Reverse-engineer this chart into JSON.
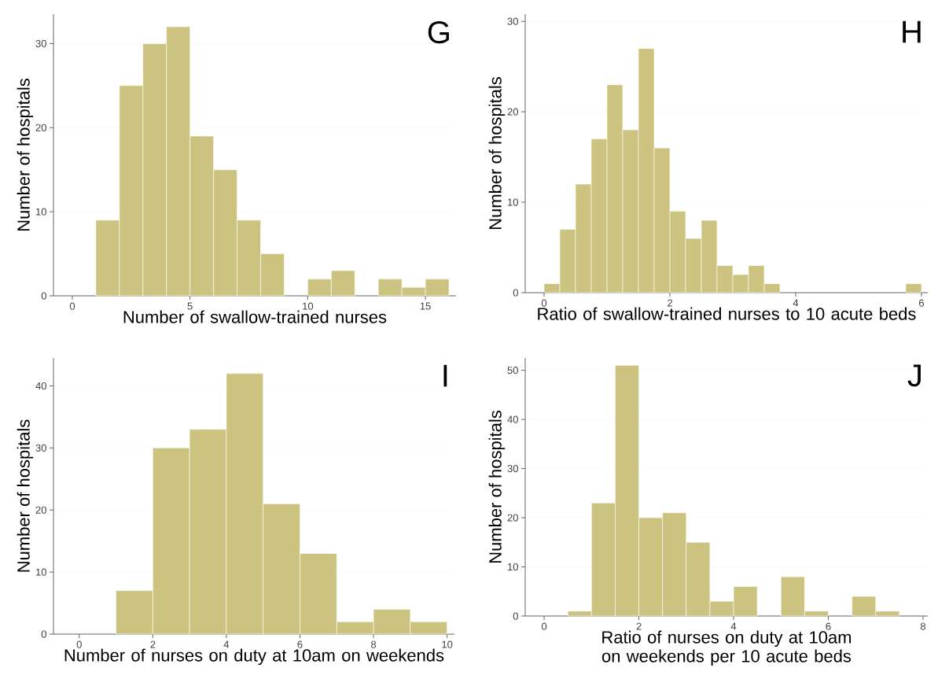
{
  "chart_data": [
    {
      "type": "histogram",
      "bins": [
        1,
        2,
        3,
        4,
        5,
        6,
        7,
        8,
        9,
        10,
        11,
        12,
        13,
        14,
        15,
        16
      ],
      "values": [
        9,
        25,
        30,
        32,
        19,
        15,
        9,
        5,
        0,
        2,
        3,
        0,
        2,
        1,
        2
      ],
      "color": "#cbc37f",
      "xlabel": "Number of swallow-trained nurses",
      "ylabel": "Number of hospitals",
      "xlim": [
        -0.8,
        16.3
      ],
      "ylim": [
        0,
        33.5
      ],
      "xticks": [
        0,
        5,
        10,
        15
      ],
      "yticks": [
        0,
        10,
        20,
        30
      ],
      "grid": "y",
      "annotations": [
        "G"
      ]
    },
    {
      "type": "histogram",
      "bins": [
        0,
        0.25,
        0.5,
        0.75,
        1,
        1.25,
        1.5,
        1.75,
        2,
        2.25,
        2.5,
        2.75,
        3,
        3.25,
        3.5,
        3.75,
        4,
        4.25,
        4.5,
        4.75,
        5,
        5.25,
        5.5,
        5.75,
        6
      ],
      "values": [
        1,
        7,
        12,
        17,
        23,
        18,
        27,
        16,
        9,
        6,
        8,
        3,
        2,
        3,
        1,
        0,
        0,
        0,
        0,
        0,
        0,
        0,
        0,
        1
      ],
      "color": "#cbc37f",
      "xlabel": "Ratio of swallow-trained nurses to 10 acute beds",
      "ylabel": "Number of hospitals",
      "xlim": [
        -0.3,
        6.1
      ],
      "ylim": [
        0,
        30.8
      ],
      "xticks": [
        0,
        2,
        4,
        6
      ],
      "yticks": [
        0,
        10,
        20,
        30
      ],
      "grid": "y",
      "annotations": [
        "H"
      ]
    },
    {
      "type": "histogram",
      "bins": [
        1,
        2,
        3,
        4,
        5,
        6,
        7,
        8,
        9,
        10
      ],
      "values": [
        7,
        30,
        33,
        42,
        21,
        13,
        2,
        4,
        2
      ],
      "color": "#cbc37f",
      "xlabel": "Number of nurses on duty at 10am on weekends",
      "ylabel": "Number of hospitals",
      "xlim": [
        -0.7,
        10.2
      ],
      "ylim": [
        0,
        44.5
      ],
      "xticks": [
        0,
        2,
        4,
        6,
        8,
        10
      ],
      "yticks": [
        0,
        10,
        20,
        30,
        40
      ],
      "grid": "y",
      "annotations": [
        "I"
      ]
    },
    {
      "type": "histogram",
      "bins": [
        0.5,
        1,
        1.5,
        2,
        2.5,
        3,
        3.5,
        4,
        4.5,
        5,
        5.5,
        6,
        6.5,
        7,
        7.5
      ],
      "values": [
        1,
        23,
        51,
        20,
        21,
        15,
        3,
        6,
        0,
        8,
        1,
        0,
        4,
        1
      ],
      "color": "#cbc37f",
      "xlabel": "Ratio of nurses on duty at 10am on weekends per 10 acute beds",
      "ylabel": "Number of hospitals",
      "xlim": [
        -0.4,
        8.1
      ],
      "ylim": [
        0,
        52.5
      ],
      "xticks": [
        0,
        2,
        4,
        6,
        8
      ],
      "yticks": [
        0,
        10,
        20,
        30,
        40,
        50
      ],
      "grid": "y",
      "annotations": [
        "J"
      ]
    }
  ]
}
